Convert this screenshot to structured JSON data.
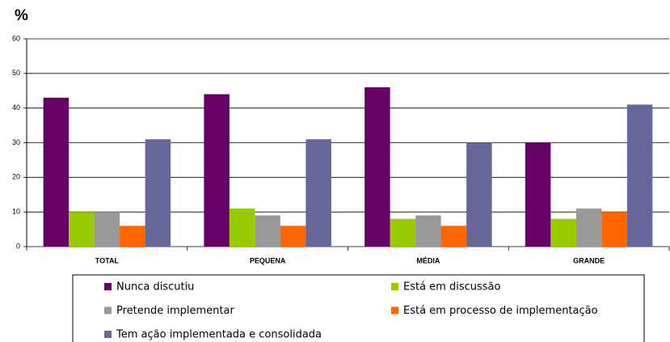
{
  "chart_data": {
    "type": "bar",
    "y_label": "%",
    "categories": [
      "TOTAL",
      "PEQUENA",
      "MÉDIA",
      "GRANDE"
    ],
    "series": [
      {
        "name": "Nunca discutiu",
        "color": "#660066",
        "values": [
          43,
          44,
          46,
          30
        ]
      },
      {
        "name": "Está em discussão",
        "color": "#99cc00",
        "values": [
          10,
          11,
          8,
          8
        ]
      },
      {
        "name": "Pretende implementar",
        "color": "#999999",
        "values": [
          10,
          9,
          9,
          11
        ]
      },
      {
        "name": "Está em processo de implementação",
        "color": "#ff6600",
        "values": [
          6,
          6,
          6,
          10
        ]
      },
      {
        "name": "Tem ação implementada e consolidada",
        "color": "#666699",
        "values": [
          31,
          31,
          30,
          41
        ]
      }
    ],
    "ylim": [
      0,
      60
    ],
    "yticks": [
      0,
      10,
      20,
      30,
      40,
      50,
      60
    ],
    "grid": true,
    "legend": "bottom"
  }
}
